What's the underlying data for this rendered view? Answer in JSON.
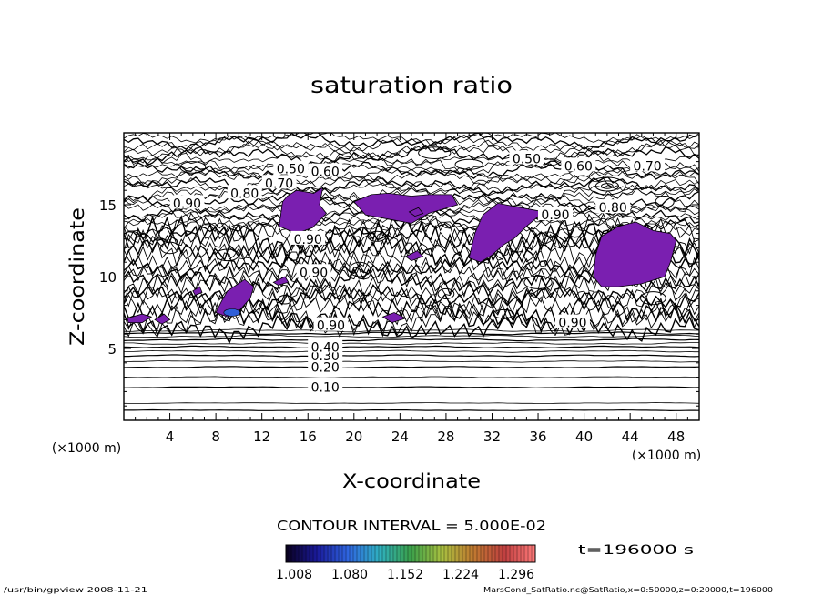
{
  "chart_data": {
    "type": "contour",
    "title": "saturation ratio",
    "xlabel": "X-coordinate",
    "ylabel": "Z-coordinate",
    "x_unit": "(×1000 m)",
    "y_unit": "(×1000 m)",
    "xlim": [
      0,
      50
    ],
    "ylim": [
      0,
      20
    ],
    "x_ticks": [
      4,
      8,
      12,
      16,
      20,
      24,
      28,
      32,
      36,
      40,
      44,
      48
    ],
    "y_ticks": [
      5,
      10,
      15
    ],
    "contour_interval_text": "CONTOUR INTERVAL = 5.000E-02",
    "time_text": "t=196000 s",
    "colorbar": {
      "ticks": [
        "1.008",
        "1.080",
        "1.152",
        "1.224",
        "1.296"
      ],
      "colors": [
        "#0a0020",
        "#1a1a9a",
        "#2f66e0",
        "#2fb0c0",
        "#3aa04a",
        "#a8c040",
        "#c07a30",
        "#c04040",
        "#ff7a7a"
      ]
    },
    "fill_color": "#7a1fb0",
    "contour_labels": [
      {
        "text": "0.10",
        "x": 17.5,
        "z": 2.3
      },
      {
        "text": "0.20",
        "x": 17.5,
        "z": 3.7
      },
      {
        "text": "0.30",
        "x": 17.5,
        "z": 4.5
      },
      {
        "text": "0.40",
        "x": 17.5,
        "z": 5.1
      },
      {
        "text": "0.50",
        "x": 14.5,
        "z": 17.5
      },
      {
        "text": "0.60",
        "x": 17.5,
        "z": 17.3
      },
      {
        "text": "0.70",
        "x": 13.5,
        "z": 16.5
      },
      {
        "text": "0.80",
        "x": 10.5,
        "z": 15.8
      },
      {
        "text": "0.90",
        "x": 5.5,
        "z": 15.1
      },
      {
        "text": "0.90",
        "x": 16,
        "z": 12.6
      },
      {
        "text": "0.90",
        "x": 16.5,
        "z": 10.3
      },
      {
        "text": "0.90",
        "x": 18,
        "z": 6.6
      },
      {
        "text": "0.50",
        "x": 35,
        "z": 18.2
      },
      {
        "text": "0.60",
        "x": 39.5,
        "z": 17.7
      },
      {
        "text": "0.70",
        "x": 45.5,
        "z": 17.7
      },
      {
        "text": "0.80",
        "x": 42.5,
        "z": 14.8
      },
      {
        "text": "0.90",
        "x": 37.5,
        "z": 14.3
      },
      {
        "text": "0.90",
        "x": 39,
        "z": 6.8
      }
    ],
    "supersaturated_regions": [
      [
        [
          13.5,
          13.5
        ],
        [
          13.8,
          15.2
        ],
        [
          14.2,
          15.6
        ],
        [
          15,
          16
        ],
        [
          16.5,
          15.8
        ],
        [
          17.3,
          16.2
        ],
        [
          17,
          15
        ],
        [
          17.6,
          14.4
        ],
        [
          16.4,
          13.4
        ],
        [
          15,
          13
        ]
      ],
      [
        [
          20,
          15.2
        ],
        [
          21.5,
          15.7
        ],
        [
          23,
          15.8
        ],
        [
          25,
          15.6
        ],
        [
          26.5,
          15.7
        ],
        [
          28.5,
          15.7
        ],
        [
          29,
          15
        ],
        [
          26.5,
          14.4
        ],
        [
          25,
          13.7
        ],
        [
          23,
          14
        ],
        [
          21,
          14.3
        ]
      ],
      [
        [
          30,
          11.3
        ],
        [
          30.5,
          13
        ],
        [
          31.2,
          14.3
        ],
        [
          32.5,
          15.1
        ],
        [
          34.5,
          14.8
        ],
        [
          36.5,
          14.5
        ],
        [
          35,
          13.5
        ],
        [
          34,
          12.7
        ],
        [
          33,
          12.2
        ],
        [
          32,
          11.5
        ],
        [
          31,
          11
        ]
      ],
      [
        [
          40.8,
          10
        ],
        [
          41,
          11.5
        ],
        [
          41.5,
          12.8
        ],
        [
          43,
          13.5
        ],
        [
          44.5,
          13.8
        ],
        [
          46,
          13.2
        ],
        [
          47.5,
          13
        ],
        [
          48,
          12.5
        ],
        [
          47.5,
          11
        ],
        [
          47,
          10
        ],
        [
          45,
          9.5
        ],
        [
          43,
          9.3
        ],
        [
          41.5,
          9.3
        ]
      ],
      [
        [
          8,
          7.5
        ],
        [
          8.5,
          8.3
        ],
        [
          9,
          9
        ],
        [
          10.5,
          9.8
        ],
        [
          11.3,
          9.3
        ],
        [
          11,
          8.5
        ],
        [
          10,
          7.6
        ],
        [
          9,
          7.2
        ]
      ],
      [
        [
          0.3,
          7.1
        ],
        [
          1.6,
          7.4
        ],
        [
          2.4,
          7.2
        ],
        [
          1.6,
          6.8
        ],
        [
          0.4,
          6.8
        ]
      ],
      [
        [
          2.7,
          7
        ],
        [
          3.5,
          7.4
        ],
        [
          4,
          7
        ],
        [
          3.3,
          6.7
        ]
      ],
      [
        [
          22.5,
          7.2
        ],
        [
          23.5,
          7.5
        ],
        [
          24.5,
          7.1
        ],
        [
          23.3,
          6.8
        ]
      ],
      [
        [
          38.5,
          6.8
        ],
        [
          39.5,
          7.1
        ],
        [
          40,
          6.8
        ],
        [
          39,
          6.6
        ]
      ],
      [
        [
          24.5,
          11.4
        ],
        [
          25.5,
          11.8
        ],
        [
          26,
          11.4
        ],
        [
          25,
          11.1
        ]
      ],
      [
        [
          13,
          9.6
        ],
        [
          14,
          10
        ],
        [
          14.3,
          9.6
        ],
        [
          13.4,
          9.4
        ]
      ],
      [
        [
          6,
          9
        ],
        [
          6.6,
          9.3
        ],
        [
          6.8,
          8.9
        ],
        [
          6.2,
          8.7
        ]
      ],
      [
        [
          24.8,
          14.5
        ],
        [
          25.6,
          14.8
        ],
        [
          26,
          14.4
        ],
        [
          25.3,
          14.2
        ]
      ]
    ],
    "blue_patch_at": {
      "x": 9.4,
      "z": 7.5
    }
  },
  "footer": {
    "left": "/usr/bin/gpview   2008-11-21",
    "right": "MarsCond_SatRatio.nc@SatRatio,x=0:50000,z=0:20000,t=196000"
  }
}
